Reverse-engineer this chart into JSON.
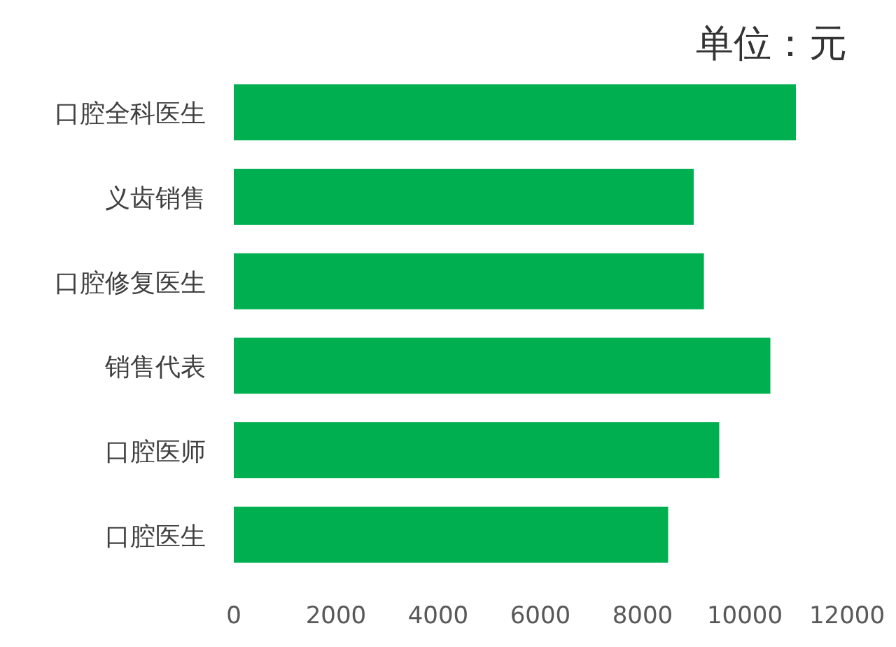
{
  "chart_data": {
    "type": "bar",
    "orientation": "horizontal",
    "title": "单位：元",
    "categories": [
      "口腔全科医生",
      "义齿销售",
      "口腔修复医生",
      "销售代表",
      "口腔医师",
      "口腔医生"
    ],
    "values": [
      11000,
      9000,
      9200,
      10500,
      9500,
      8500
    ],
    "color": "#00b050",
    "xlim": [
      0,
      12000
    ],
    "xticks": [
      0,
      2000,
      4000,
      6000,
      8000,
      10000,
      12000
    ],
    "grid": false
  }
}
